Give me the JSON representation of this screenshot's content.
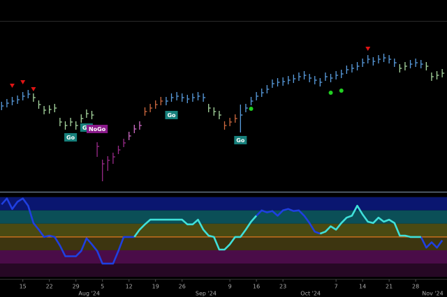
{
  "chart_data": {
    "type": "ohlc",
    "xlim": [
      -0.3,
      83.9
    ],
    "ylim": [
      0,
      245
    ],
    "xticks": [
      {
        "value": 4,
        "label": "15"
      },
      {
        "value": 9,
        "label": "22"
      },
      {
        "value": 14,
        "label": "29"
      },
      {
        "value": 19,
        "label": "5"
      },
      {
        "value": 24,
        "label": "12"
      },
      {
        "value": 29,
        "label": "19"
      },
      {
        "value": 34,
        "label": "26"
      },
      {
        "value": 43,
        "label": "9"
      },
      {
        "value": 48,
        "label": "16"
      },
      {
        "value": 53,
        "label": "23"
      },
      {
        "value": 63,
        "label": "7"
      },
      {
        "value": 68,
        "label": "14"
      },
      {
        "value": 73,
        "label": "21"
      },
      {
        "value": 78,
        "label": "28"
      }
    ],
    "month_ticks": [
      {
        "value": 16.5,
        "label": "Aug '24"
      },
      {
        "value": 38.5,
        "label": "Sep '24"
      },
      {
        "value": 58.2,
        "label": "Oct '24"
      },
      {
        "value": 81.2,
        "label": "Nov '24"
      }
    ],
    "bar_colors": [
      "#5a9ee0",
      "#5a9ee0",
      "#5a9ee0",
      "#5a9ee0",
      "#5a9ee0",
      "#5a9ee0",
      "#a8d8a0",
      "#a8d8a0",
      "#a8d8a0",
      "#a8d8a0",
      "#a8d8a0",
      "#a8d8a0",
      "#a8d8a0",
      "#a8d8a0",
      "#a8d8a0",
      "#a8d8a0",
      "#a8d8a0",
      "#a8d8a0",
      "#9a2a8a",
      "#9a2a8a",
      "#9a2a8a",
      "#9a2a8a",
      "#9a2a8a",
      "#9a2a8a",
      "#d06cc8",
      "#d06cc8",
      "#d06cc8",
      "#d06a40",
      "#d06a40",
      "#d06a40",
      "#d06a40",
      "#5a9ee0",
      "#5a9ee0",
      "#5a9ee0",
      "#5a9ee0",
      "#5a9ee0",
      "#5a9ee0",
      "#5a9ee0",
      "#5a9ee0",
      "#a8d8a0",
      "#a8d8a0",
      "#a8d8a0",
      "#d06a40",
      "#d06a40",
      "#d06a40",
      "#5a9ee0",
      "#5a9ee0",
      "#5a9ee0",
      "#5a9ee0",
      "#5a9ee0",
      "#5a9ee0",
      "#5a9ee0",
      "#5a9ee0",
      "#5a9ee0",
      "#5a9ee0",
      "#5a9ee0",
      "#5a9ee0",
      "#5a9ee0",
      "#5a9ee0",
      "#5a9ee0",
      "#5a9ee0",
      "#5a9ee0",
      "#5a9ee0",
      "#5a9ee0",
      "#5a9ee0",
      "#5a9ee0",
      "#5a9ee0",
      "#5a9ee0",
      "#5a9ee0",
      "#5a9ee0",
      "#5a9ee0",
      "#5a9ee0",
      "#5a9ee0",
      "#5a9ee0",
      "#5a9ee0",
      "#a8d8a0",
      "#a8d8a0",
      "#5a9ee0",
      "#5a9ee0",
      "#5a9ee0",
      "#a8d8a0",
      "#a8d8a0",
      "#a8d8a0",
      "#a8d8a0"
    ],
    "high": [
      129,
      133,
      136,
      138,
      143,
      146,
      141,
      131,
      123,
      124,
      126,
      106,
      101,
      106,
      101,
      111,
      118,
      116,
      71,
      46,
      51,
      56,
      66,
      76,
      86,
      96,
      101,
      121,
      126,
      131,
      136,
      136,
      141,
      143,
      141,
      139,
      141,
      143,
      141,
      126,
      121,
      116,
      101,
      106,
      111,
      125,
      126,
      136,
      143,
      148,
      153,
      161,
      163,
      164,
      166,
      168,
      171,
      173,
      169,
      166,
      163,
      171,
      169,
      173,
      175,
      181,
      183,
      186,
      191,
      196,
      193,
      196,
      198,
      196,
      191,
      183,
      186,
      189,
      191,
      189,
      186,
      171,
      173,
      176
    ],
    "low": [
      117,
      121,
      124,
      126,
      131,
      134,
      129,
      119,
      111,
      112,
      114,
      94,
      89,
      94,
      89,
      99,
      106,
      104,
      50,
      15,
      30,
      40,
      54,
      64,
      74,
      84,
      89,
      109,
      114,
      119,
      124,
      124,
      129,
      131,
      129,
      127,
      129,
      131,
      129,
      114,
      109,
      104,
      89,
      94,
      99,
      85,
      114,
      124,
      131,
      136,
      141,
      149,
      151,
      152,
      154,
      156,
      159,
      161,
      157,
      154,
      151,
      159,
      157,
      161,
      163,
      169,
      171,
      174,
      179,
      184,
      181,
      184,
      186,
      184,
      179,
      171,
      174,
      177,
      179,
      177,
      174,
      159,
      161,
      164
    ],
    "close": [
      123,
      127,
      130,
      132,
      137,
      140,
      135,
      125,
      117,
      118,
      120,
      100,
      95,
      100,
      95,
      105,
      112,
      110,
      65,
      40,
      45,
      50,
      60,
      70,
      80,
      90,
      95,
      115,
      120,
      125,
      130,
      130,
      135,
      137,
      135,
      133,
      135,
      137,
      135,
      120,
      115,
      110,
      95,
      100,
      105,
      110,
      120,
      130,
      137,
      142,
      147,
      155,
      157,
      158,
      160,
      162,
      165,
      167,
      163,
      160,
      157,
      165,
      163,
      167,
      169,
      175,
      177,
      180,
      185,
      190,
      187,
      190,
      192,
      190,
      185,
      177,
      180,
      183,
      185,
      183,
      180,
      165,
      167,
      170
    ],
    "markers": [
      {
        "shape": "triangle-down",
        "color": "#e01414",
        "x": 2,
        "y": 152
      },
      {
        "shape": "triangle-down",
        "color": "#e01414",
        "x": 4,
        "y": 157
      },
      {
        "shape": "triangle-down",
        "color": "#e01414",
        "x": 6,
        "y": 147
      },
      {
        "shape": "triangle-down",
        "color": "#e01414",
        "x": 69,
        "y": 205
      },
      {
        "shape": "dot",
        "color": "#22d022",
        "x": 47,
        "y": 119
      },
      {
        "shape": "dot",
        "color": "#22d022",
        "x": 62,
        "y": 142
      },
      {
        "shape": "dot",
        "color": "#22d022",
        "x": 64,
        "y": 145
      }
    ],
    "annotations": [
      {
        "text": "Go",
        "color": "#17807c",
        "x": 13,
        "y": 78
      },
      {
        "text": "Go",
        "color": "#17807c",
        "x": 16,
        "y": 92
      },
      {
        "text": "NoGo",
        "color": "#8a1a8a",
        "x": 18,
        "y": 90
      },
      {
        "text": "Go",
        "color": "#17807c",
        "x": 32,
        "y": 110
      },
      {
        "text": "Go",
        "color": "#17807c",
        "x": 45,
        "y": 74
      }
    ],
    "oscillator": {
      "type": "line",
      "ylim": [
        -6.3,
        6.7
      ],
      "bands": [
        6,
        4,
        2,
        0,
        -2,
        -4,
        -6
      ],
      "band_colors": [
        "#0a1670",
        "#0b4f57",
        "#4a4a12",
        "#3d3510",
        "#4a0c48",
        "#260824"
      ],
      "zero_color": "#e07820",
      "series": [
        {
          "color": "#1f3fe0",
          "values": [
            4.9,
            5.8,
            4.2,
            5.3,
            5.8,
            4.7,
            2.1,
            1.1,
            0,
            0.2,
            0,
            -1.3,
            -2.9,
            -2.9,
            -2.9,
            -2.1,
            -0.2,
            -1.1,
            -2.1,
            -4,
            -4,
            -4,
            -2.1,
            0,
            0,
            0,
            null,
            null,
            null,
            null,
            null,
            null,
            null,
            null,
            null,
            null,
            null,
            null,
            null,
            null,
            null,
            null,
            null,
            null,
            null,
            null,
            null,
            null,
            3.2,
            4,
            3.7,
            3.9,
            3.2,
            4,
            4.2,
            3.9,
            4,
            3.2,
            2.1,
            0.8,
            0.5,
            null,
            null,
            null,
            null,
            null,
            null,
            null,
            null,
            null,
            null,
            null,
            null,
            null,
            null,
            null,
            null,
            null,
            null,
            0,
            -1.6,
            -0.8,
            -1.6,
            -0.5
          ]
        },
        {
          "color": "#3fe0da",
          "values": [
            null,
            null,
            null,
            null,
            null,
            null,
            null,
            null,
            null,
            null,
            null,
            null,
            null,
            null,
            null,
            null,
            null,
            null,
            null,
            null,
            null,
            null,
            null,
            null,
            null,
            0,
            1.1,
            1.9,
            2.6,
            2.6,
            2.6,
            2.6,
            2.6,
            2.6,
            2.6,
            1.9,
            1.9,
            2.6,
            1.1,
            0.2,
            0,
            -1.9,
            -1.9,
            -1.1,
            0,
            0,
            1.1,
            2.3,
            3.2,
            null,
            null,
            null,
            null,
            null,
            null,
            null,
            null,
            null,
            null,
            null,
            0.5,
            0.8,
            1.6,
            1.1,
            2.1,
            2.9,
            3.2,
            4.7,
            3.4,
            2.3,
            2.1,
            2.9,
            2.3,
            2.6,
            2.1,
            0.2,
            0.2,
            0,
            0,
            0,
            null,
            null,
            null,
            null
          ]
        }
      ]
    }
  }
}
